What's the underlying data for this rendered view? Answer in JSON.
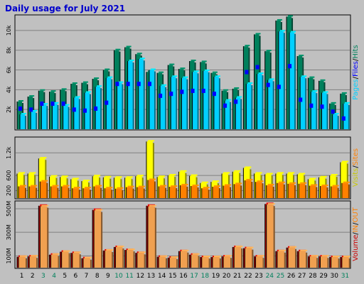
{
  "title": "Daily usage for July 2021",
  "colors": {
    "hits": "#00805c",
    "files": "#00d0ff",
    "pages": "#0000ff",
    "visits": "#ffff00",
    "sites": "#ff8000",
    "kbin": "#ff8000",
    "kbout": "#ff8000",
    "volume": "#cc0000"
  },
  "chart_data": [
    {
      "type": "bar",
      "panel": "usage",
      "x": [
        "1",
        "2",
        "3",
        "4",
        "5",
        "6",
        "7",
        "8",
        "9",
        "10",
        "11",
        "12",
        "13",
        "14",
        "15",
        "16",
        "17",
        "18",
        "19",
        "20",
        "21",
        "22",
        "23",
        "24",
        "25",
        "26",
        "27",
        "28",
        "29",
        "30",
        "31"
      ],
      "weekend_days": [
        "3",
        "4",
        "10",
        "11",
        "17",
        "18",
        "24",
        "25",
        "31"
      ],
      "ylim": [
        0,
        11500
      ],
      "tick_labels": [
        "2k",
        "4k",
        "6k",
        "8k",
        "10k"
      ],
      "tick_values": [
        2000,
        4000,
        6000,
        8000,
        10000
      ],
      "series": [
        {
          "name": "Hits",
          "values": [
            2800,
            3300,
            3900,
            3800,
            4000,
            4600,
            4700,
            5100,
            6000,
            8000,
            8300,
            7600,
            5800,
            5700,
            6500,
            6100,
            6900,
            6800,
            5700,
            3900,
            4100,
            8400,
            9600,
            7900,
            11000,
            11400,
            7400,
            5200,
            4900,
            2600,
            3600
          ]
        },
        {
          "name": "Files",
          "values": [
            1500,
            1800,
            2500,
            2600,
            2400,
            3200,
            3700,
            4300,
            5200,
            4700,
            6900,
            7100,
            6000,
            4400,
            5300,
            5200,
            5800,
            5900,
            5300,
            2900,
            3200,
            4600,
            5600,
            5000,
            9900,
            9800,
            5300,
            3800,
            3700,
            1500,
            2600
          ]
        },
        {
          "name": "Pages",
          "values": [
            2300,
            2200,
            2800,
            2800,
            2800,
            2200,
            2100,
            2300,
            2900,
            4800,
            4800,
            4800,
            4800,
            3600,
            3800,
            4000,
            4100,
            4100,
            3800,
            2600,
            3000,
            6000,
            6500,
            4700,
            4500,
            6600,
            3200,
            2600,
            2500,
            2000,
            1300
          ]
        }
      ],
      "legend": [
        "Pages",
        "Files",
        "Hits"
      ]
    },
    {
      "type": "bar",
      "panel": "visits-sites",
      "x": [
        "1",
        "2",
        "3",
        "4",
        "5",
        "6",
        "7",
        "8",
        "9",
        "10",
        "11",
        "12",
        "13",
        "14",
        "15",
        "16",
        "17",
        "18",
        "19",
        "20",
        "21",
        "22",
        "23",
        "24",
        "25",
        "26",
        "27",
        "28",
        "29",
        "30",
        "31"
      ],
      "ylim": [
        0,
        1600
      ],
      "tick_labels": [
        "200",
        "600",
        "1.2k"
      ],
      "tick_values": [
        200,
        600,
        1200
      ],
      "series": [
        {
          "name": "Visits",
          "values": [
            650,
            650,
            1050,
            570,
            560,
            500,
            450,
            580,
            550,
            540,
            540,
            580,
            1500,
            560,
            600,
            700,
            590,
            400,
            430,
            650,
            700,
            800,
            650,
            630,
            650,
            650,
            630,
            500,
            550,
            600,
            950
          ]
        },
        {
          "name": "Sites",
          "values": [
            310,
            310,
            440,
            310,
            310,
            260,
            260,
            310,
            260,
            250,
            290,
            290,
            480,
            310,
            300,
            340,
            320,
            260,
            300,
            330,
            370,
            470,
            430,
            340,
            400,
            380,
            380,
            330,
            320,
            310,
            400
          ]
        }
      ],
      "legend": [
        "Visits",
        "Sites"
      ]
    },
    {
      "type": "bar",
      "panel": "volume",
      "x": [
        "1",
        "2",
        "3",
        "4",
        "5",
        "6",
        "7",
        "8",
        "9",
        "10",
        "11",
        "12",
        "13",
        "14",
        "15",
        "16",
        "17",
        "18",
        "19",
        "20",
        "21",
        "22",
        "23",
        "24",
        "25",
        "26",
        "27",
        "28",
        "29",
        "30",
        "31"
      ],
      "ylim": [
        0,
        560
      ],
      "tick_labels": [
        "100M",
        "300M",
        "500M"
      ],
      "tick_values": [
        100,
        300,
        500
      ],
      "series": [
        {
          "name": "Volume",
          "values": [
            92,
            95,
            525,
            110,
            135,
            125,
            80,
            490,
            145,
            175,
            150,
            125,
            525,
            92,
            85,
            140,
            110,
            90,
            90,
            95,
            175,
            165,
            95,
            540,
            140,
            170,
            140,
            95,
            95,
            90,
            90
          ]
        },
        {
          "name": "KB In",
          "values": [
            92,
            95,
            520,
            110,
            135,
            125,
            80,
            485,
            145,
            175,
            150,
            125,
            520,
            92,
            85,
            140,
            110,
            90,
            90,
            95,
            175,
            165,
            95,
            535,
            140,
            170,
            140,
            95,
            95,
            90,
            90
          ]
        },
        {
          "name": "KB Out",
          "values": [
            2,
            2,
            3,
            2,
            2,
            2,
            2,
            3,
            2,
            2,
            2,
            2,
            3,
            2,
            2,
            2,
            2,
            2,
            2,
            2,
            2,
            2,
            2,
            3,
            2,
            2,
            2,
            2,
            2,
            2,
            2
          ]
        }
      ],
      "legend": [
        "Volume",
        "IN",
        "OUT"
      ]
    }
  ]
}
